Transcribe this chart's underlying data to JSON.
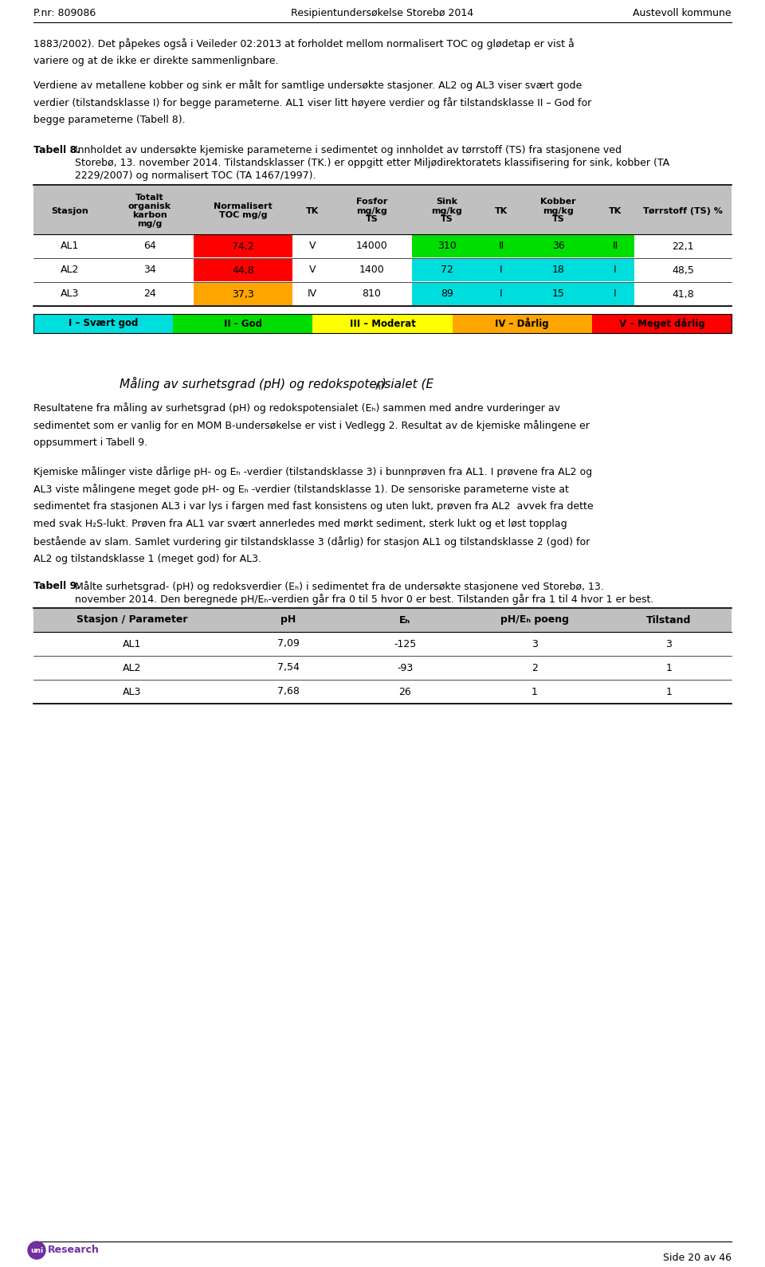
{
  "header_left": "P.nr: 809086",
  "header_center": "Resipientundersøkelse Storebø 2014",
  "header_right": "Austevoll kommune",
  "footer_right": "Side 20 av 46",
  "page_bg": "#ffffff",
  "table8_header_bg": "#c0c0c0",
  "table8_rows": [
    [
      "AL1",
      "64",
      "74,2",
      "V",
      "14000",
      "310",
      "II",
      "36",
      "II",
      "22,1"
    ],
    [
      "AL2",
      "34",
      "44,8",
      "V",
      "1400",
      "72",
      "I",
      "18",
      "I",
      "48,5"
    ],
    [
      "AL3",
      "24",
      "37,3",
      "IV",
      "810",
      "89",
      "I",
      "15",
      "I",
      "41,8"
    ]
  ],
  "toc_colors": [
    "#ff0000",
    "#ff0000",
    "#ffa500"
  ],
  "sink_colors": [
    "#00dd00",
    "#00dddd",
    "#00dddd"
  ],
  "kobber_colors": [
    "#00dd00",
    "#00dddd",
    "#00dddd"
  ],
  "legend_items": [
    {
      "label": "I – Svært god",
      "color": "#00dddd"
    },
    {
      "label": "II - God",
      "color": "#00dd00"
    },
    {
      "label": "III – Moderat",
      "color": "#ffff00"
    },
    {
      "label": "IV – Dårlig",
      "color": "#ffa500"
    },
    {
      "label": "V – Meget dårlig",
      "color": "#ff0000"
    }
  ],
  "table9_header_bg": "#c0c0c0",
  "table9_rows": [
    [
      "AL1",
      "7,09",
      "-125",
      "3",
      "3"
    ],
    [
      "AL2",
      "7,54",
      "-93",
      "2",
      "1"
    ],
    [
      "AL3",
      "7,68",
      "26",
      "1",
      "1"
    ]
  ]
}
